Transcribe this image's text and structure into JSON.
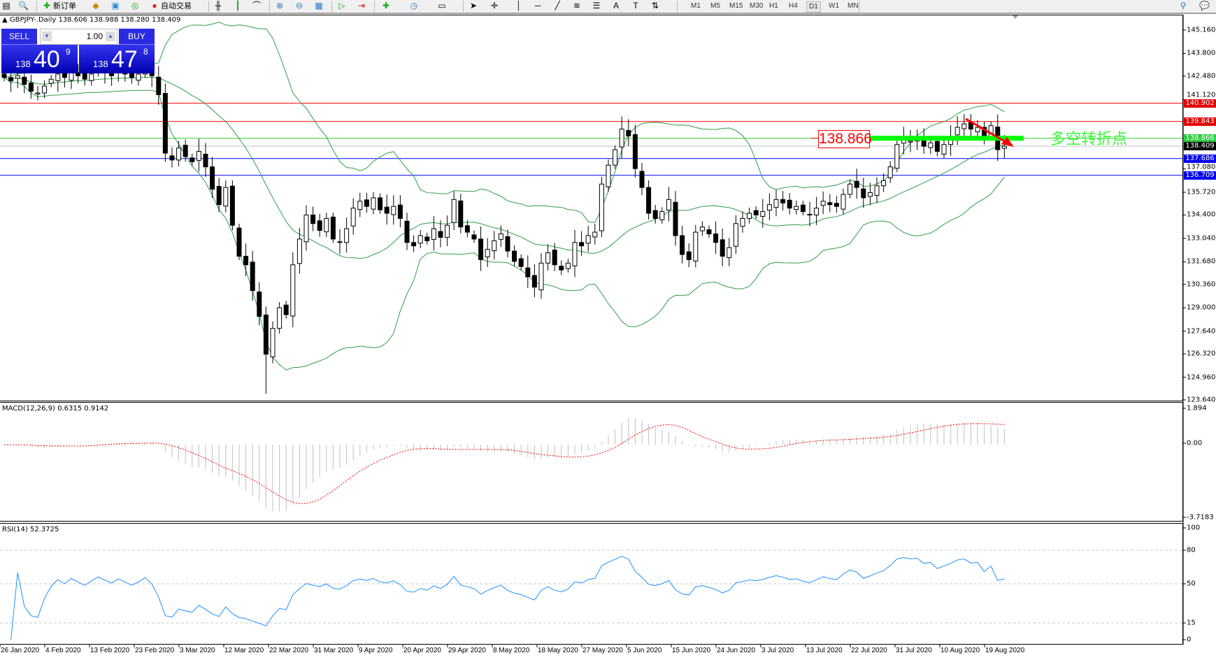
{
  "toolbar": {
    "new_order_label": "新订单",
    "auto_trading_label": "自动交易",
    "timeframes": [
      "M1",
      "M5",
      "M15",
      "M30",
      "H1",
      "H4",
      "D1",
      "W1",
      "MN"
    ],
    "active_timeframe": "D1"
  },
  "chart": {
    "header": "▲ GBPJPY-.Daily  138.606 138.988 138.280 138.409",
    "symbol": "GBPJPY-",
    "period": "Daily",
    "ohlc": {
      "open": "138.606",
      "high": "138.988",
      "low": "138.280",
      "close": "138.409"
    }
  },
  "trade_panel": {
    "sell_label": "SELL",
    "buy_label": "BUY",
    "volume": "1.00",
    "bid": {
      "prefix": "138",
      "big": "40",
      "sup": "9"
    },
    "ask": {
      "prefix": "138",
      "big": "47",
      "sup": "8"
    }
  },
  "price_axis": {
    "ticks": [
      "145.160",
      "143.800",
      "142.480",
      "141.120",
      "137.080",
      "135.720",
      "134.400",
      "133.040",
      "131.680",
      "130.360",
      "129.000",
      "127.640",
      "126.320",
      "124.960",
      "123.640"
    ],
    "range": [
      123.64,
      145.16
    ]
  },
  "levels": [
    {
      "price": "140.902",
      "color": "#ff0000",
      "tag_bg": "#e00000"
    },
    {
      "price": "139.843",
      "color": "#ff0000",
      "tag_bg": "#e00000"
    },
    {
      "price": "138.866",
      "color": "#33cc33",
      "tag_bg": "#2ecc40"
    },
    {
      "price": "138.409",
      "color": "#c0c0c0",
      "tag_bg": "#000000"
    },
    {
      "price": "137.686",
      "color": "#0000ff",
      "tag_bg": "#0000ee"
    },
    {
      "price": "136.709",
      "color": "#0000ff",
      "tag_bg": "#0000ee"
    }
  ],
  "annotation": {
    "price_label": "138.866",
    "text": "多空转折点",
    "text_color": "#33ff33",
    "arrow_color": "#ff0000"
  },
  "colors": {
    "bands": "#2e9e46",
    "rsi": "#1e90ff",
    "macd_hist": "#c0c0c0",
    "macd_signal": "#ff0000"
  },
  "macd": {
    "label": "MACD(12,26,9) 0.6315 0.9142",
    "ticks": [
      "1.894",
      "0.00",
      "-3.7183"
    ]
  },
  "rsi": {
    "label": "RSI(14) 52.3725",
    "ticks": [
      "100",
      "80",
      "50",
      "15",
      "0"
    ]
  },
  "dates": [
    "26 Jan 2020",
    "4 Feb 2020",
    "13 Feb 2020",
    "23 Feb 2020",
    "3 Mar 2020",
    "12 Mar 2020",
    "22 Mar 2020",
    "31 Mar 2020",
    "9 Apr 2020",
    "20 Apr 2020",
    "29 Apr 2020",
    "8 May 2020",
    "18 May 2020",
    "27 May 2020",
    "5 Jun 2020",
    "15 Jun 2020",
    "24 Jun 2020",
    "3 Jul 2020",
    "13 Jul 2020",
    "22 Jul 2020",
    "31 Jul 2020",
    "10 Aug 2020",
    "19 Aug 2020"
  ],
  "closes": [
    142.4,
    142.2,
    142.5,
    142.0,
    141.6,
    141.5,
    141.9,
    142.3,
    142.6,
    142.4,
    142.7,
    142.5,
    142.3,
    142.6,
    142.9,
    142.7,
    142.5,
    142.8,
    142.6,
    142.4,
    142.6,
    142.9,
    142.5,
    141.4,
    138.0,
    137.6,
    138.3,
    137.8,
    137.5,
    138.1,
    137.2,
    135.9,
    135.0,
    136.0,
    133.8,
    132.0,
    131.5,
    130.0,
    128.5,
    126.3,
    127.8,
    129.0,
    128.6,
    131.5,
    133.0,
    134.4,
    133.9,
    133.5,
    134.2,
    133.0,
    132.8,
    133.6,
    134.8,
    135.2,
    134.9,
    135.4,
    134.7,
    134.5,
    134.9,
    134.2,
    132.8,
    132.6,
    133.2,
    132.9,
    133.6,
    133.1,
    133.8,
    135.3,
    133.7,
    133.4,
    133.0,
    131.8,
    132.4,
    132.9,
    133.3,
    132.3,
    131.7,
    131.4,
    130.8,
    130.2,
    131.6,
    132.2,
    131.5,
    131.2,
    131.6,
    132.8,
    132.6,
    133.2,
    133.4,
    136.2,
    137.3,
    138.2,
    139.4,
    139.0,
    137.1,
    136.0,
    134.5,
    134.2,
    134.6,
    135.3,
    133.2,
    132.1,
    131.8,
    133.4,
    133.7,
    133.3,
    132.8,
    132.0,
    132.5,
    133.9,
    134.2,
    134.5,
    134.4,
    134.6,
    135.0,
    135.3,
    135.1,
    134.8,
    134.9,
    134.6,
    134.4,
    134.8,
    135.2,
    135.0,
    134.9,
    135.6,
    136.2,
    136.0,
    135.4,
    135.7,
    136.1,
    136.4,
    137.2,
    138.5,
    138.8,
    138.7,
    138.8,
    138.4,
    138.6,
    138.1,
    138.5,
    138.9,
    139.5,
    139.7,
    139.4,
    139.5,
    138.8,
    139.6,
    138.2,
    138.4
  ]
}
